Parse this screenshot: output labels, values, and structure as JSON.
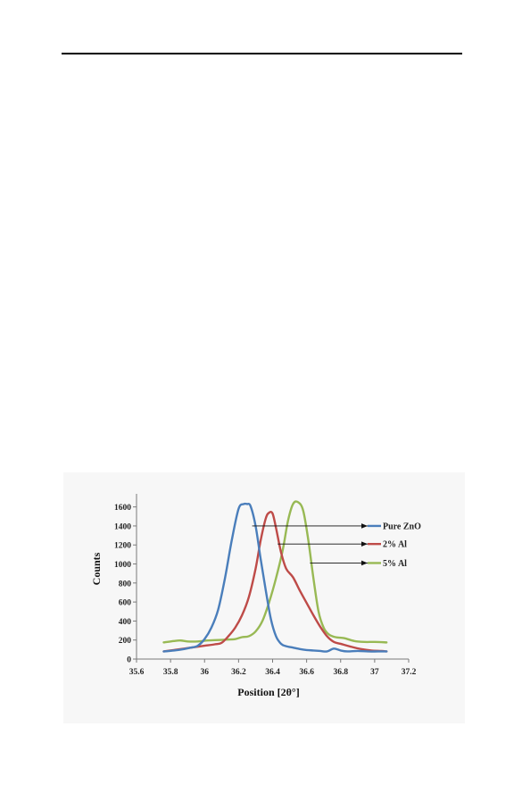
{
  "chart_data": {
    "type": "line",
    "title": "",
    "xlabel": "Position [2θ°]",
    "ylabel": "Counts",
    "xlim": [
      35.6,
      37.2
    ],
    "ylim": [
      0,
      1700
    ],
    "x_ticks": [
      35.6,
      35.8,
      36,
      36.2,
      36.4,
      36.6,
      36.8,
      37,
      37.2
    ],
    "x_tick_labels": [
      "35.6",
      "35.8",
      "36",
      "36.2",
      "36.4",
      "36.6",
      "36.8",
      "37",
      "37.2"
    ],
    "y_ticks": [
      0,
      200,
      400,
      600,
      800,
      1000,
      1200,
      1400,
      1600
    ],
    "y_tick_labels": [
      "0",
      "200",
      "400",
      "600",
      "800",
      "1000",
      "1200",
      "1400",
      "1600"
    ],
    "grid": false,
    "legend_position": "right",
    "series": [
      {
        "name": "Pure ZnO",
        "color": "#4a7ebb",
        "x": [
          35.76,
          35.82,
          35.88,
          35.92,
          35.96,
          36.0,
          36.04,
          36.08,
          36.12,
          36.16,
          36.2,
          36.23,
          36.25,
          36.27,
          36.3,
          36.33,
          36.36,
          36.39,
          36.42,
          36.45,
          36.48,
          36.52,
          36.56,
          36.6,
          36.64,
          36.68,
          36.72,
          36.76,
          36.8,
          36.84,
          36.9,
          36.96,
          37.02,
          37.07
        ],
        "y": [
          80,
          90,
          105,
          120,
          140,
          210,
          330,
          520,
          850,
          1250,
          1580,
          1630,
          1630,
          1610,
          1400,
          1050,
          720,
          420,
          240,
          160,
          135,
          120,
          105,
          95,
          90,
          85,
          80,
          110,
          90,
          80,
          85,
          80,
          80,
          80
        ]
      },
      {
        "name": "2% Al",
        "color": "#be4b48",
        "x": [
          35.76,
          35.82,
          35.88,
          35.94,
          36.0,
          36.06,
          36.1,
          36.14,
          36.18,
          36.22,
          36.26,
          36.3,
          36.33,
          36.36,
          36.38,
          36.4,
          36.42,
          36.45,
          36.48,
          36.52,
          36.56,
          36.6,
          36.64,
          36.68,
          36.72,
          36.76,
          36.8,
          36.86,
          36.92,
          36.98,
          37.04,
          37.07
        ],
        "y": [
          80,
          95,
          110,
          125,
          140,
          155,
          170,
          240,
          330,
          460,
          650,
          950,
          1250,
          1480,
          1540,
          1530,
          1380,
          1120,
          950,
          860,
          720,
          590,
          460,
          340,
          240,
          180,
          160,
          130,
          105,
          90,
          85,
          80
        ]
      },
      {
        "name": "5% Al",
        "color": "#98b954",
        "x": [
          35.76,
          35.82,
          35.86,
          35.9,
          35.96,
          36.02,
          36.08,
          36.14,
          36.18,
          36.22,
          36.26,
          36.3,
          36.34,
          36.38,
          36.42,
          36.46,
          36.49,
          36.52,
          36.55,
          36.58,
          36.61,
          36.64,
          36.67,
          36.7,
          36.73,
          36.77,
          36.82,
          36.88,
          36.94,
          37.0,
          37.07
        ],
        "y": [
          175,
          190,
          195,
          185,
          185,
          195,
          200,
          205,
          210,
          230,
          240,
          290,
          400,
          600,
          850,
          1150,
          1450,
          1630,
          1650,
          1560,
          1250,
          850,
          500,
          330,
          260,
          230,
          220,
          190,
          180,
          180,
          175
        ]
      }
    ],
    "legend_arrows": [
      {
        "series": "Pure ZnO",
        "from_x": 36.28,
        "from_y": 1400
      },
      {
        "series": "2% Al",
        "from_x": 36.43,
        "from_y": 1210
      },
      {
        "series": "5% Al",
        "from_x": 36.62,
        "from_y": 1010
      }
    ]
  }
}
